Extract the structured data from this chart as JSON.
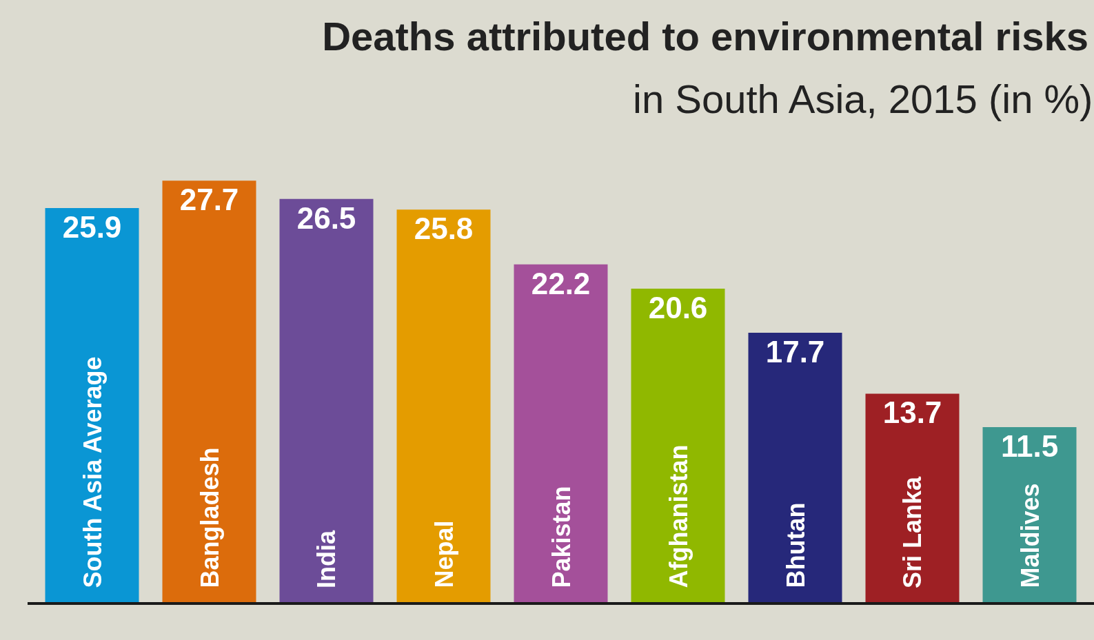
{
  "chart_data": {
    "type": "bar",
    "title": "Deaths attributed to environmental risks",
    "subtitle": "in South Asia, 2015 (in %)",
    "categories": [
      "South Asia Average",
      "Bangladesh",
      "India",
      "Nepal",
      "Pakistan",
      "Afghanistan",
      "Bhutan",
      "Sri Lanka",
      "Maldives"
    ],
    "values": [
      25.9,
      27.7,
      26.5,
      25.8,
      22.2,
      20.6,
      17.7,
      13.7,
      11.5
    ],
    "colors": [
      "#0a96d4",
      "#dc6c0c",
      "#6c4c98",
      "#e49c00",
      "#a4509a",
      "#90b800",
      "#26287a",
      "#9e2024",
      "#3e9890"
    ],
    "data_labels": true
  }
}
